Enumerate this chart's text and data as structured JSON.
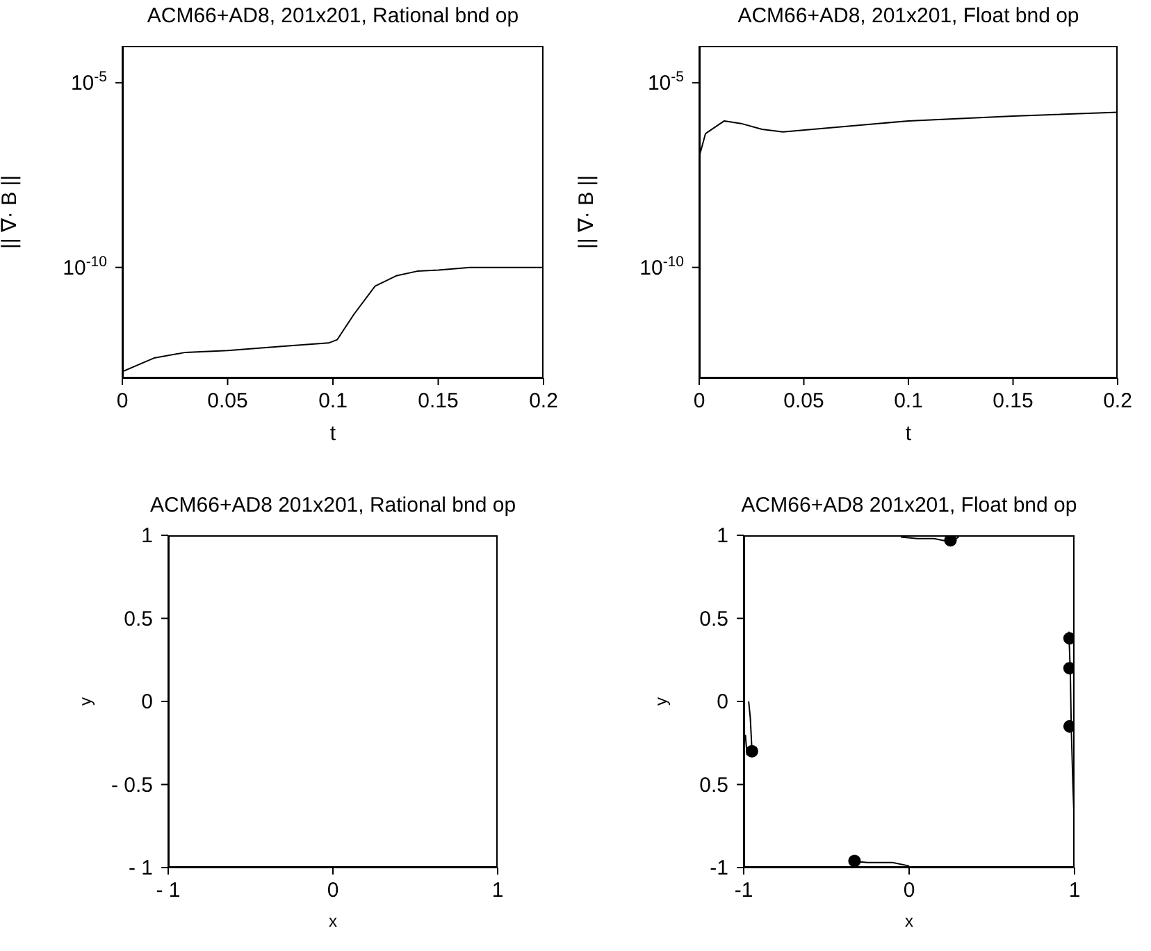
{
  "chart_data": [
    {
      "type": "line",
      "title": "ACM66+AD8, 201x201, Rational bnd op",
      "xlabel": "t",
      "ylabel": "|| ∇· B ||",
      "log": "y",
      "xlim": [
        0,
        0.2
      ],
      "xticks": [
        0,
        0.05,
        0.1,
        0.15,
        0.2
      ],
      "ylim": [
        1e-13,
        0.0001
      ],
      "yticks": [
        {
          "value": 1e-05,
          "label": "10$^{-5}$"
        },
        {
          "value": 1e-10,
          "label": "10$^{-10}$"
        }
      ],
      "marker": "none",
      "line_style": "solid",
      "series": [
        {
          "color": "#000000",
          "x": [
            0,
            0.015,
            0.03,
            0.05,
            0.08,
            0.098,
            0.102,
            0.11,
            0.12,
            0.13,
            0.14,
            0.15,
            0.165,
            0.2
          ],
          "values": [
            1.5e-13,
            3.5e-13,
            5e-13,
            5.6e-13,
            7.6e-13,
            9e-13,
            1.1e-12,
            5.4e-12,
            3.1e-11,
            5.9e-11,
            7.9e-11,
            8.5e-11,
            1e-10,
            1e-10
          ]
        }
      ]
    },
    {
      "type": "line",
      "title": "ACM66+AD8, 201x201, Float bnd op",
      "xlabel": "t",
      "ylabel": "|| ∇· B ||",
      "log": "y",
      "xlim": [
        0,
        0.2
      ],
      "xticks": [
        0,
        0.05,
        0.1,
        0.15,
        0.2
      ],
      "ylim": [
        1e-13,
        0.0001
      ],
      "yticks": [
        {
          "value": 1e-05,
          "label": "10$^{-5}$"
        },
        {
          "value": 1e-10,
          "label": "10$^{-10}$"
        }
      ],
      "marker": "none",
      "line_style": "solid",
      "series": [
        {
          "color": "#000000",
          "x": [
            0,
            0.003,
            0.012,
            0.02,
            0.03,
            0.04,
            0.06,
            0.1,
            0.15,
            0.2
          ],
          "values": [
            1e-07,
            4.2e-07,
            9.3e-07,
            7.9e-07,
            5.5e-07,
            4.7e-07,
            5.9e-07,
            9.3e-07,
            1.26e-06,
            1.6e-06
          ]
        }
      ]
    },
    {
      "type": "line",
      "title": "ACM66+AD8 201x201, Rational bnd op",
      "xlabel": "x",
      "ylabel": "y",
      "xlim": [
        -1,
        1
      ],
      "xticks": [
        {
          "value": -1,
          "label": "- 1"
        },
        0,
        1
      ],
      "ylim": [
        -1,
        1
      ],
      "yticks": [
        {
          "value": -1,
          "label": "- 1"
        },
        {
          "value": -0.5,
          "label": "- 0.5"
        },
        0,
        0.5,
        1
      ]
    },
    {
      "type": "line",
      "title": "ACM66+AD8 201x201, Float bnd op",
      "xlabel": "x",
      "ylabel": "y",
      "xlim": [
        -1,
        1
      ],
      "xticks": [
        -1,
        0,
        1
      ],
      "ylim": [
        -1,
        1
      ],
      "yticks": [
        -1,
        {
          "value": -0.5,
          "label": "0.5"
        },
        0,
        0.5,
        1
      ],
      "marker": "none",
      "line_style": "solid",
      "series": [
        {
          "color": "#000000",
          "x": [
            -0.05,
            0.05,
            0.15,
            0.25,
            0.3
          ],
          "values": [
            0.99,
            0.98,
            0.98,
            0.96,
            0.99
          ]
        },
        {
          "color": "#000000",
          "x": [
            0.965,
            0.97,
            0.975,
            0.98,
            0.99,
            1.0
          ],
          "values": [
            0.42,
            0.3,
            0.15,
            -0.15,
            -0.5,
            -0.78
          ]
        },
        {
          "color": "#000000",
          "x": [
            -0.36,
            -0.25,
            -0.1,
            0.0
          ],
          "values": [
            -0.96,
            -0.97,
            -0.97,
            -0.99
          ]
        },
        {
          "color": "#000000",
          "x": [
            -0.97,
            -0.96,
            -0.95,
            -0.98,
            -0.99
          ],
          "values": [
            0.0,
            -0.1,
            -0.3,
            -0.32,
            -0.2
          ]
        },
        {
          "type": "scatter",
          "marker": "circle",
          "color": "#000000",
          "x": [
            0.97,
            0.97,
            0.97,
            0.25,
            -0.33,
            -0.95
          ],
          "values": [
            0.38,
            0.2,
            -0.15,
            0.97,
            -0.96,
            -0.3
          ]
        }
      ]
    }
  ]
}
